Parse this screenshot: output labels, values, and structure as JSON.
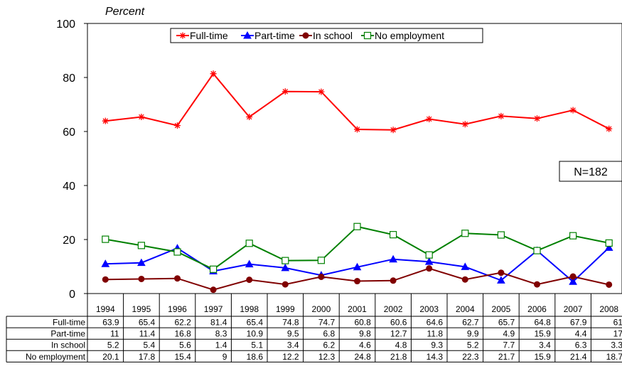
{
  "chart_data": {
    "type": "line",
    "y_unit_label": "Percent",
    "ylim": [
      0,
      100
    ],
    "y_ticks": [
      "0",
      "20",
      "40",
      "60",
      "80",
      "100"
    ],
    "categories": [
      "1994",
      "1995",
      "1996",
      "1997",
      "1998",
      "1999",
      "2000",
      "2001",
      "2002",
      "2003",
      "2004",
      "2005",
      "2006",
      "2007",
      "2008"
    ],
    "series": [
      {
        "name": "Full-time",
        "color": "#ff0000",
        "marker": "star",
        "values": [
          63.9,
          65.4,
          62.2,
          81.4,
          65.4,
          74.8,
          74.7,
          60.8,
          60.6,
          64.6,
          62.7,
          65.7,
          64.8,
          67.9,
          61
        ],
        "labels": [
          "63.9",
          "65.4",
          "62.2",
          "81.4",
          "65.4",
          "74.8",
          "74.7",
          "60.8",
          "60.6",
          "64.6",
          "62.7",
          "65.7",
          "64.8",
          "67.9",
          "61"
        ]
      },
      {
        "name": "Part-time",
        "color": "#0000ff",
        "marker": "triangle",
        "values": [
          11,
          11.4,
          16.8,
          8.3,
          10.9,
          9.5,
          6.8,
          9.8,
          12.7,
          11.8,
          9.9,
          4.9,
          15.9,
          4.4,
          17
        ],
        "labels": [
          "11",
          "11.4",
          "16.8",
          "8.3",
          "10.9",
          "9.5",
          "6.8",
          "9.8",
          "12.7",
          "11.8",
          "9.9",
          "4.9",
          "15.9",
          "4.4",
          "17"
        ]
      },
      {
        "name": "In school",
        "color": "#800000",
        "marker": "circle",
        "values": [
          5.2,
          5.4,
          5.6,
          1.4,
          5.1,
          3.4,
          6.2,
          4.6,
          4.8,
          9.3,
          5.2,
          7.7,
          3.4,
          6.3,
          3.3
        ],
        "labels": [
          "5.2",
          "5.4",
          "5.6",
          "1.4",
          "5.1",
          "3.4",
          "6.2",
          "4.6",
          "4.8",
          "9.3",
          "5.2",
          "7.7",
          "3.4",
          "6.3",
          "3.3"
        ]
      },
      {
        "name": "No employment",
        "color": "#008000",
        "marker": "square",
        "values": [
          20.1,
          17.8,
          15.4,
          9,
          18.6,
          12.2,
          12.3,
          24.8,
          21.8,
          14.3,
          22.3,
          21.7,
          15.9,
          21.4,
          18.7
        ],
        "labels": [
          "20.1",
          "17.8",
          "15.4",
          "9",
          "18.6",
          "12.2",
          "12.3",
          "24.8",
          "21.8",
          "14.3",
          "22.3",
          "21.7",
          "15.9",
          "21.4",
          "18.7"
        ]
      }
    ],
    "annotation": "N=182",
    "legend_position": "top-center",
    "grid": false
  }
}
